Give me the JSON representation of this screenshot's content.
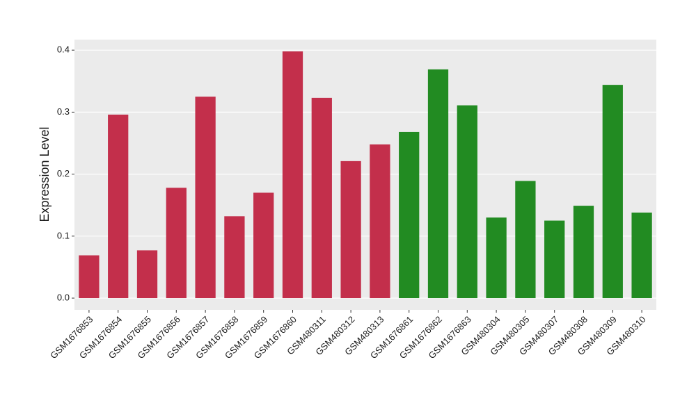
{
  "chart_data": {
    "type": "bar",
    "y_label": "Expression Level",
    "categories": [
      "GSM1676853",
      "GSM1676854",
      "GSM1676855",
      "GSM1676856",
      "GSM1676857",
      "GSM1676858",
      "GSM1676859",
      "GSM1676860",
      "GSM480311",
      "GSM480312",
      "GSM480313",
      "GSM1676861",
      "GSM1676862",
      "GSM1676863",
      "GSM480304",
      "GSM480305",
      "GSM480307",
      "GSM480308",
      "GSM480309",
      "GSM480310"
    ],
    "values": [
      0.069,
      0.296,
      0.077,
      0.178,
      0.325,
      0.132,
      0.17,
      0.398,
      0.323,
      0.221,
      0.248,
      0.268,
      0.369,
      0.311,
      0.13,
      0.189,
      0.125,
      0.149,
      0.344,
      0.138
    ],
    "colors": [
      "#c32f4b",
      "#c32f4b",
      "#c32f4b",
      "#c32f4b",
      "#c32f4b",
      "#c32f4b",
      "#c32f4b",
      "#c32f4b",
      "#c32f4b",
      "#c32f4b",
      "#c32f4b",
      "#228b22",
      "#228b22",
      "#228b22",
      "#228b22",
      "#228b22",
      "#228b22",
      "#228b22",
      "#228b22",
      "#228b22"
    ],
    "ylim": [
      -0.019,
      0.417
    ],
    "yticks": [
      {
        "value": 0,
        "label": "0.0"
      },
      0.1,
      0.2,
      0.3,
      0.4
    ],
    "grid": true
  }
}
